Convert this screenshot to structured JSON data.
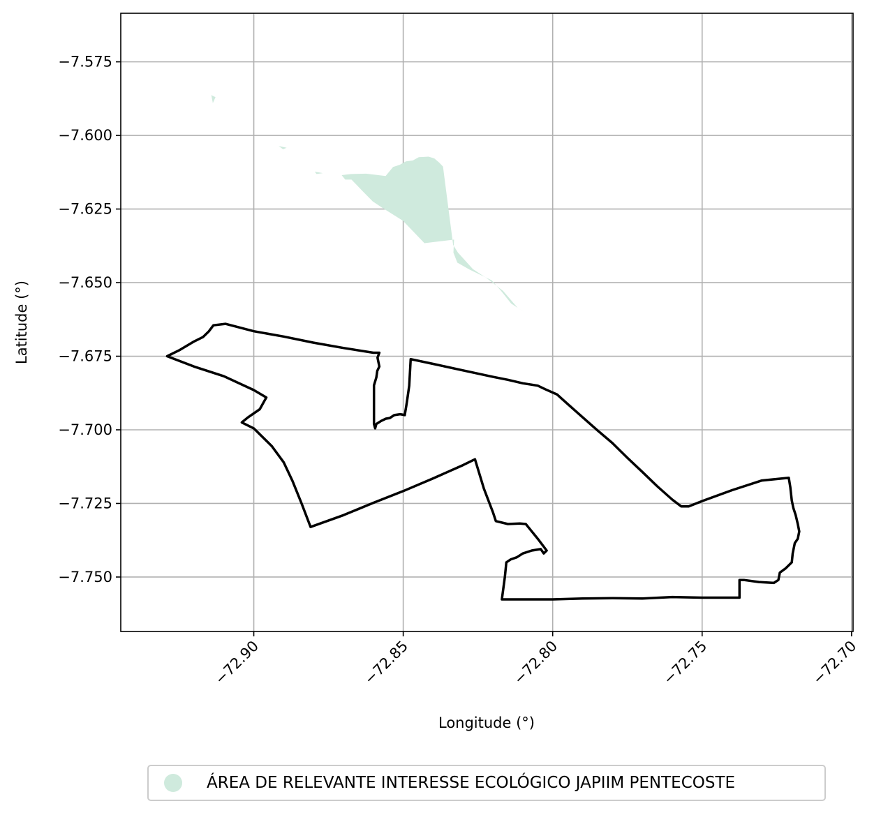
{
  "chart_data": {
    "type": "map",
    "title": "",
    "xlabel": "Longitude (°)",
    "ylabel": "Latitude (°)",
    "xlim": [
      -72.9445,
      -72.6995
    ],
    "ylim": [
      -7.7685,
      -7.5585
    ],
    "x_ticks": [
      {
        "value": -72.9,
        "label": "−72.90"
      },
      {
        "value": -72.85,
        "label": "−72.85"
      },
      {
        "value": -72.8,
        "label": "−72.80"
      },
      {
        "value": -72.75,
        "label": "−72.75"
      },
      {
        "value": -72.7,
        "label": "−72.70"
      }
    ],
    "y_ticks": [
      {
        "value": -7.575,
        "label": "−7.575"
      },
      {
        "value": -7.6,
        "label": "−7.600"
      },
      {
        "value": -7.625,
        "label": "−7.625"
      },
      {
        "value": -7.65,
        "label": "−7.650"
      },
      {
        "value": -7.675,
        "label": "−7.675"
      },
      {
        "value": -7.7,
        "label": "−7.700"
      },
      {
        "value": -7.725,
        "label": "−7.725"
      },
      {
        "value": -7.75,
        "label": "−7.750"
      }
    ],
    "grid": true,
    "legend_position": "bottom-center",
    "layers": [
      {
        "name": "ÁREA DE RELEVANTE INTERESSE ECOLÓGICO JAPIIM PENTECOSTE",
        "kind": "filled-polygon",
        "color": "#cfeadd",
        "coordinates": [
          [
            -72.8415,
            -7.6072
          ],
          [
            -72.8396,
            -7.6078
          ],
          [
            -72.838,
            -7.6092
          ],
          [
            -72.8367,
            -7.6106
          ],
          [
            -72.8333,
            -7.6372
          ],
          [
            -72.8317,
            -7.6398
          ],
          [
            -72.8267,
            -7.6454
          ],
          [
            -72.8219,
            -7.6486
          ],
          [
            -72.8166,
            -7.6528
          ],
          [
            -72.8117,
            -7.6586
          ],
          [
            -72.8091,
            -7.6603
          ],
          [
            -72.8139,
            -7.6571
          ],
          [
            -72.8172,
            -7.6529
          ],
          [
            -72.8204,
            -7.6492
          ],
          [
            -72.8279,
            -7.6455
          ],
          [
            -72.8319,
            -7.6432
          ],
          [
            -72.8332,
            -7.6398
          ],
          [
            -72.833,
            -7.6354
          ],
          [
            -72.8429,
            -7.6366
          ],
          [
            -72.8501,
            -7.629
          ],
          [
            -72.8573,
            -7.6244
          ],
          [
            -72.8602,
            -7.6224
          ],
          [
            -72.8634,
            -7.6191
          ],
          [
            -72.8673,
            -7.615
          ],
          [
            -72.8694,
            -7.615
          ],
          [
            -72.8706,
            -7.6135
          ],
          [
            -72.8674,
            -7.6131
          ],
          [
            -72.8624,
            -7.613
          ],
          [
            -72.8559,
            -7.6138
          ],
          [
            -72.8534,
            -7.6107
          ],
          [
            -72.8512,
            -7.61
          ],
          [
            -72.8491,
            -7.6088
          ],
          [
            -72.8468,
            -7.6085
          ],
          [
            -72.8448,
            -7.6074
          ]
        ],
        "fragments": [
          [
            [
              -72.8796,
              -7.6123
            ],
            [
              -72.8769,
              -7.6128
            ],
            [
              -72.879,
              -7.6131
            ]
          ],
          [
            [
              -72.8917,
              -7.6036
            ],
            [
              -72.889,
              -7.6042
            ],
            [
              -72.8902,
              -7.6047
            ]
          ],
          [
            [
              -72.9142,
              -7.5863
            ],
            [
              -72.9128,
              -7.587
            ],
            [
              -72.9137,
              -7.589
            ]
          ]
        ]
      },
      {
        "name": "boundary",
        "kind": "outline",
        "color": "#000000",
        "coordinates": [
          [
            -72.929,
            -7.675
          ],
          [
            -72.925,
            -7.673
          ],
          [
            -72.92,
            -7.67
          ],
          [
            -72.917,
            -7.6685
          ],
          [
            -72.915,
            -7.6665
          ],
          [
            -72.9135,
            -7.6645
          ],
          [
            -72.9095,
            -7.664
          ],
          [
            -72.9,
            -7.6665
          ],
          [
            -72.89,
            -7.6683
          ],
          [
            -72.88,
            -7.6704
          ],
          [
            -72.87,
            -7.6722
          ],
          [
            -72.86,
            -7.6738
          ],
          [
            -72.858,
            -7.6738
          ],
          [
            -72.8586,
            -7.6755
          ],
          [
            -72.858,
            -7.6785
          ],
          [
            -72.8587,
            -7.68
          ],
          [
            -72.859,
            -7.6822
          ],
          [
            -72.8598,
            -7.6849
          ],
          [
            -72.8598,
            -7.698
          ],
          [
            -72.8594,
            -7.6995
          ],
          [
            -72.859,
            -7.698
          ],
          [
            -72.8574,
            -7.697
          ],
          [
            -72.8558,
            -7.6962
          ],
          [
            -72.8545,
            -7.696
          ],
          [
            -72.853,
            -7.695
          ],
          [
            -72.851,
            -7.6947
          ],
          [
            -72.8495,
            -7.695
          ],
          [
            -72.849,
            -7.692
          ],
          [
            -72.8487,
            -7.69
          ],
          [
            -72.848,
            -7.685
          ],
          [
            -72.8475,
            -7.676
          ],
          [
            -72.84,
            -7.6776
          ],
          [
            -72.83,
            -7.6798
          ],
          [
            -72.82,
            -7.682
          ],
          [
            -72.815,
            -7.683
          ],
          [
            -72.81,
            -7.6842
          ],
          [
            -72.805,
            -7.685
          ],
          [
            -72.8025,
            -7.6862
          ],
          [
            -72.7985,
            -7.688
          ],
          [
            -72.795,
            -7.6912
          ],
          [
            -72.79,
            -7.6957
          ],
          [
            -72.785,
            -7.7002
          ],
          [
            -72.78,
            -7.7045
          ],
          [
            -72.775,
            -7.7095
          ],
          [
            -72.77,
            -7.7143
          ],
          [
            -72.765,
            -7.7192
          ],
          [
            -72.76,
            -7.7237
          ],
          [
            -72.757,
            -7.726
          ],
          [
            -72.7545,
            -7.726
          ],
          [
            -72.75,
            -7.7242
          ],
          [
            -72.74,
            -7.7205
          ],
          [
            -72.73,
            -7.7172
          ],
          [
            -72.721,
            -7.7163
          ],
          [
            -72.7205,
            -7.7195
          ],
          [
            -72.72,
            -7.724
          ],
          [
            -72.7195,
            -7.7265
          ],
          [
            -72.7187,
            -7.729
          ],
          [
            -72.718,
            -7.732
          ],
          [
            -72.7175,
            -7.7345
          ],
          [
            -72.718,
            -7.737
          ],
          [
            -72.719,
            -7.7385
          ],
          [
            -72.7197,
            -7.742
          ],
          [
            -72.72,
            -7.745
          ],
          [
            -72.722,
            -7.747
          ],
          [
            -72.724,
            -7.7485
          ],
          [
            -72.7245,
            -7.751
          ],
          [
            -72.726,
            -7.752
          ],
          [
            -72.731,
            -7.7517
          ],
          [
            -72.736,
            -7.751
          ],
          [
            -72.7375,
            -7.751
          ],
          [
            -72.7375,
            -7.757
          ],
          [
            -72.74,
            -7.757
          ],
          [
            -72.75,
            -7.757
          ],
          [
            -72.76,
            -7.7568
          ],
          [
            -72.77,
            -7.7573
          ],
          [
            -72.78,
            -7.7572
          ],
          [
            -72.79,
            -7.7573
          ],
          [
            -72.8,
            -7.7576
          ],
          [
            -72.81,
            -7.7576
          ],
          [
            -72.817,
            -7.7576
          ],
          [
            -72.816,
            -7.75
          ],
          [
            -72.8155,
            -7.745
          ],
          [
            -72.814,
            -7.744
          ],
          [
            -72.812,
            -7.7433
          ],
          [
            -72.81,
            -7.742
          ],
          [
            -72.807,
            -7.741
          ],
          [
            -72.804,
            -7.7405
          ],
          [
            -72.803,
            -7.742
          ],
          [
            -72.802,
            -7.741
          ],
          [
            -72.805,
            -7.737
          ],
          [
            -72.809,
            -7.732
          ],
          [
            -72.811,
            -7.7318
          ],
          [
            -72.815,
            -7.732
          ],
          [
            -72.819,
            -7.731
          ],
          [
            -72.82,
            -7.728
          ],
          [
            -72.823,
            -7.72
          ],
          [
            -72.826,
            -7.71
          ],
          [
            -72.83,
            -7.712
          ],
          [
            -72.84,
            -7.7165
          ],
          [
            -72.85,
            -7.7208
          ],
          [
            -72.86,
            -7.7248
          ],
          [
            -72.87,
            -7.729
          ],
          [
            -72.881,
            -7.733
          ],
          [
            -72.884,
            -7.725
          ],
          [
            -72.887,
            -7.7175
          ],
          [
            -72.89,
            -7.711
          ],
          [
            -72.894,
            -7.7055
          ],
          [
            -72.9,
            -7.6995
          ],
          [
            -72.904,
            -7.6975
          ],
          [
            -72.902,
            -7.6958
          ],
          [
            -72.898,
            -7.693
          ],
          [
            -72.8958,
            -7.689
          ],
          [
            -72.9,
            -7.6865
          ],
          [
            -72.91,
            -7.6818
          ],
          [
            -72.92,
            -7.6785
          ],
          [
            -72.929,
            -7.675
          ]
        ]
      }
    ]
  },
  "legend": {
    "label": "ÁREA DE RELEVANTE INTERESSE ECOLÓGICO JAPIIM PENTECOSTE",
    "color": "#cfeadd"
  }
}
